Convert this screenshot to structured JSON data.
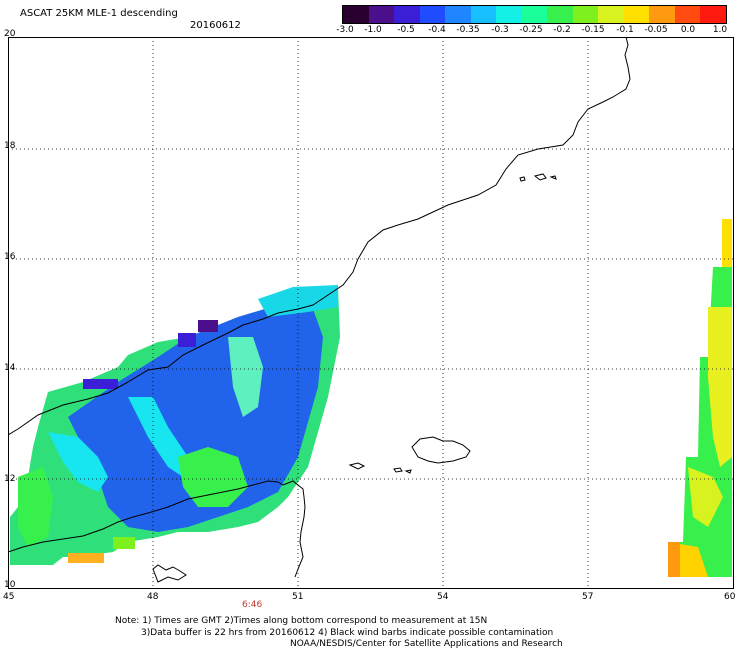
{
  "header": {
    "title": "ASCAT 25KM MLE-1 descending",
    "date": "20160612"
  },
  "colorbar": {
    "labels": [
      "-3.0",
      "-1.0",
      "-0.5",
      "-0.4",
      "-0.35",
      "-0.3",
      "-0.25",
      "-0.2",
      "-0.15",
      "-0.1",
      "-0.05",
      "0.0",
      "1.0"
    ],
    "colors": [
      "#2a0030",
      "#4b0f8c",
      "#3a1fd6",
      "#1f4cff",
      "#1f86ff",
      "#17bfff",
      "#14f0e6",
      "#1aff9a",
      "#37f04b",
      "#7df01e",
      "#d7f21e",
      "#ffe000",
      "#ff9a10",
      "#ff4a10",
      "#ff1a10"
    ]
  },
  "axes": {
    "lat_labels": [
      "20",
      "18",
      "16",
      "14",
      "12",
      "10"
    ],
    "lon_labels": [
      "45",
      "48",
      "51",
      "54",
      "57",
      "60"
    ],
    "lat_range": [
      10,
      20
    ],
    "lon_range": [
      45,
      60
    ]
  },
  "time_label": "6:46",
  "notes": {
    "line1": "Note: 1) Times are GMT 2)Times along bottom correspond to measurement at 15N",
    "line2": "3)Data buffer is 22 hrs from 20160612 4) Black wind barbs indicate possible contamination",
    "line3": "NOAA/NESDIS/Center for Satellite Applications and Research"
  }
}
